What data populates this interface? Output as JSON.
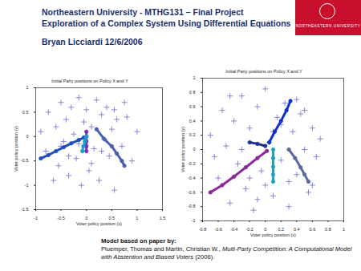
{
  "header": {
    "title": "Northeastern University - MTHG131 – Final Project",
    "subtitle": "Exploration of a Complex System Using Differential Equations",
    "author": "Bryan Licciardi  12/6/2006"
  },
  "logo": {
    "text": "NORTHEASTERN UNIVERSITY"
  },
  "chart_data": [
    {
      "type": "scatter",
      "title": "Initial Party positions on Policy X and Y",
      "x_label": "Voter policy position (x)",
      "y_label": "Voter policy position (y)",
      "xlim": [
        -1,
        1.5
      ],
      "ylim": [
        -1.5,
        1
      ],
      "xticks": [
        -1,
        -0.5,
        0,
        0.5,
        1,
        1.5
      ],
      "yticks": [
        -1.5,
        -1,
        -0.5,
        0,
        0.5,
        1
      ],
      "grid": false,
      "series": [
        {
          "color": "#7b7bd6",
          "marker": "plus",
          "x": [
            -0.9,
            -0.8,
            -0.75,
            -0.6,
            -0.55,
            -0.5,
            -0.45,
            -0.4,
            -0.35,
            -0.3,
            -0.25,
            -0.2,
            -0.15,
            -0.1,
            -0.05,
            0,
            0.05,
            0.1,
            0.15,
            0.2,
            0.25,
            0.3,
            0.35,
            0.4,
            0.45,
            0.5,
            0.55,
            0.6,
            0.7,
            0.8,
            0.9,
            1.0,
            -0.65,
            -0.35,
            -0.15,
            0.1,
            0.3,
            0.55,
            0.75,
            -0.5
          ],
          "y": [
            0.1,
            -0.3,
            0.5,
            0.2,
            -0.6,
            0.7,
            -0.1,
            0.35,
            -0.8,
            0.6,
            0.05,
            -0.45,
            0.8,
            -1.0,
            0.3,
            0.55,
            -0.7,
            0.2,
            -0.25,
            0.75,
            -0.9,
            0.45,
            -0.05,
            0.6,
            -0.4,
            0.15,
            -1.1,
            0.35,
            -0.2,
            0.4,
            -0.5,
            0.1,
            -0.9,
            -0.4,
            -0.15,
            -0.55,
            -0.3,
            0.55,
            0.7,
            -0.2
          ]
        },
        {
          "type": "line",
          "color": "#1f4fbf",
          "marker": "circle",
          "x": [
            -0.9,
            -0.75,
            -0.6,
            -0.45,
            -0.3,
            -0.15,
            -0.05
          ],
          "y": [
            -0.45,
            -0.38,
            -0.3,
            -0.22,
            -0.14,
            -0.07,
            -0.02
          ]
        },
        {
          "type": "line",
          "color": "#7a2fbf",
          "marker": "circle",
          "x": [
            0,
            0,
            0,
            0,
            0
          ],
          "y": [
            0.1,
            0,
            -0.1,
            -0.2,
            -0.3
          ]
        },
        {
          "type": "line",
          "color": "#4a5fb0",
          "marker": "circle",
          "x": [
            0.2,
            0.35,
            0.5,
            0.6,
            0.7,
            0.75
          ],
          "y": [
            0.15,
            -0.05,
            -0.2,
            -0.35,
            -0.5,
            -0.6
          ]
        },
        {
          "type": "line",
          "color": "#1aa0c8",
          "marker": "circle",
          "x": [
            0,
            -0.03,
            -0.06,
            -0.08
          ],
          "y": [
            0,
            -0.1,
            -0.2,
            -0.3
          ]
        }
      ]
    },
    {
      "type": "scatter",
      "title": "Initial Party positions on Policy X and Y",
      "x_label": "Voter policy position (x)",
      "y_label": "Voter policy position (y)",
      "xlim": [
        -0.8,
        1
      ],
      "ylim": [
        -1,
        1
      ],
      "xticks": [
        -0.8,
        -0.6,
        -0.4,
        -0.2,
        0,
        0.2,
        0.4,
        0.6,
        0.8,
        1
      ],
      "yticks": [
        -1,
        -0.8,
        -0.6,
        -0.4,
        -0.2,
        0,
        0.2,
        0.4,
        0.6,
        0.8,
        1
      ],
      "grid": false,
      "series": [
        {
          "color": "#7b7bd6",
          "marker": "plus",
          "x": [
            -0.7,
            -0.6,
            -0.55,
            -0.5,
            -0.45,
            -0.4,
            -0.35,
            -0.3,
            -0.25,
            -0.2,
            -0.15,
            -0.1,
            -0.05,
            0,
            0.05,
            0.1,
            0.15,
            0.2,
            0.25,
            0.3,
            0.35,
            0.4,
            0.45,
            0.5,
            0.55,
            0.6,
            0.65,
            0.7,
            -0.65,
            -0.3,
            0,
            0.2,
            0.4,
            -0.1,
            0.3,
            0.5,
            -0.45,
            0.1,
            0.6,
            -0.2
          ],
          "y": [
            0.2,
            -0.4,
            0.55,
            0.05,
            -0.75,
            0.4,
            -0.2,
            0.75,
            -0.55,
            0.3,
            -0.85,
            0.6,
            -0.3,
            0.85,
            0.1,
            -0.65,
            0.45,
            -0.15,
            0.65,
            -0.8,
            0.25,
            -0.35,
            0.5,
            0.0,
            -0.6,
            0.3,
            -0.1,
            0.15,
            -0.1,
            0.0,
            -0.5,
            0.35,
            0.7,
            -0.7,
            -0.45,
            0.55,
            0.75,
            0.25,
            -0.5,
            -0.4
          ]
        },
        {
          "type": "line",
          "color": "#8a2a9a",
          "marker": "circle",
          "x": [
            -0.7,
            -0.55,
            -0.4,
            -0.25,
            -0.1,
            0.02
          ],
          "y": [
            -0.6,
            -0.5,
            -0.38,
            -0.25,
            -0.12,
            -0.02
          ]
        },
        {
          "type": "line",
          "color": "#1030d0",
          "marker": "circle",
          "x": [
            0.05,
            0.12,
            0.2,
            0.27,
            0.32
          ],
          "y": [
            0.1,
            0.25,
            0.4,
            0.55,
            0.68
          ]
        },
        {
          "type": "line",
          "color": "#5a6aa0",
          "marker": "circle",
          "x": [
            0.3,
            0.38,
            0.45,
            0.5,
            0.55
          ],
          "y": [
            0.0,
            -0.12,
            -0.25,
            -0.35,
            -0.45
          ]
        },
        {
          "type": "line",
          "color": "#20a0c0",
          "marker": "circle",
          "x": [
            0.1,
            0.1,
            0.1,
            0.1,
            0.1
          ],
          "y": [
            0.0,
            -0.12,
            -0.24,
            -0.35,
            -0.45
          ]
        },
        {
          "type": "line",
          "color": "#203090",
          "marker": "circle",
          "x": [
            0.0,
            -0.1,
            -0.2
          ],
          "y": [
            0.05,
            0.08,
            0.1
          ]
        }
      ]
    }
  ],
  "footer": {
    "intro": "Model based on paper by:",
    "authors": "Pluemper, Thomas and Martin, Christian W.,",
    "work": "Multi-Party Competition: A Computational Model with Abstention and Biased Voters",
    "year": "(2006)."
  }
}
